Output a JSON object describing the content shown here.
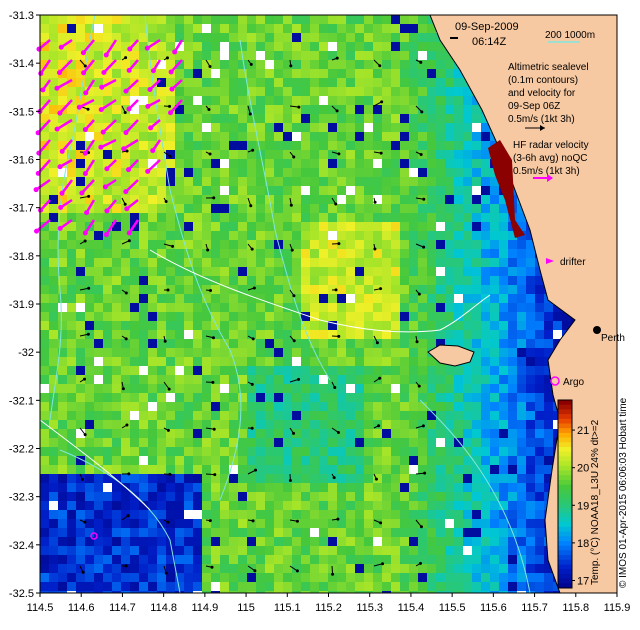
{
  "map": {
    "date": "09-Sep-2009",
    "time": "06:14Z",
    "scale_bar": "200  1000m",
    "sealevel_note": [
      "Altimetric sealevel",
      "(0.1m contours)",
      "and velocity for",
      "09-Sep 06Z",
      "0.5m/s (1kt 3h)"
    ],
    "radar_note": [
      "HF radar velocity",
      "(3-6h avg) noQC",
      "0.5m/s (1kt 3h)"
    ],
    "drifter_label": "drifter",
    "argo_label": "Argo",
    "place_label": "Perth",
    "credit": "© IMOS 01-Apr-2015 06:06:03 Hobart time",
    "colorbar_title": "Temp. (°C) NOAA18_L3U 24% dt>=2",
    "colorbar_ticks": [
      "17",
      "18",
      "19",
      "20",
      "21"
    ],
    "colorbar_range": [
      16.8,
      21.8
    ],
    "colors": {
      "land": "#f7c9a2",
      "radar_arrow": "#ff00ff",
      "argo": "#ff00ff",
      "bathymetry": "#7fe7e0"
    }
  },
  "axes": {
    "x_ticks": [
      "114.5",
      "114.6",
      "114.7",
      "114.8",
      "114.9",
      "115",
      "115.1",
      "115.2",
      "115.3",
      "115.4",
      "115.5",
      "115.6",
      "115.7",
      "115.8",
      "115.9"
    ],
    "y_ticks": [
      "-31.3",
      "-31.4",
      "-31.5",
      "-31.6",
      "-31.7",
      "-31.8",
      "-31.9",
      "-32",
      "-32.1",
      "-32.2",
      "-32.3",
      "-32.4",
      "-32.5"
    ],
    "lon_range": [
      114.5,
      115.9
    ],
    "lat_range": [
      -32.5,
      -31.3
    ]
  }
}
